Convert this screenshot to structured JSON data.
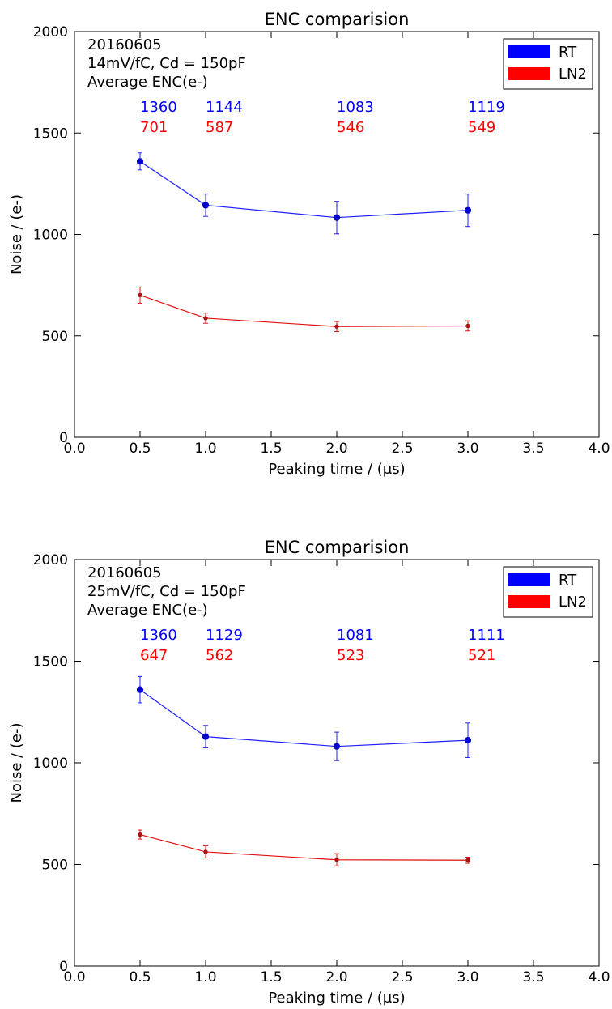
{
  "colors": {
    "rt": "#0000ff",
    "rt_line": "#1f1fff",
    "ln2": "#ff0000",
    "ln2_line": "#e01010",
    "marker_rt": "#0000cc",
    "marker_ln2": "#aa1111"
  },
  "chart_data": [
    {
      "type": "line",
      "title": "ENC comparision",
      "xlabel": "Peaking time / (μs)",
      "ylabel": "Noise /  (e-)",
      "xlim": [
        0.0,
        4.0
      ],
      "ylim": [
        0,
        2000
      ],
      "xticks": [
        "0.0",
        "0.5",
        "1.0",
        "1.5",
        "2.0",
        "2.5",
        "3.0",
        "3.5",
        "4.0"
      ],
      "yticks": [
        "0",
        "500",
        "1000",
        "1500",
        "2000"
      ],
      "xtick_values": [
        0.0,
        0.5,
        1.0,
        1.5,
        2.0,
        2.5,
        3.0,
        3.5,
        4.0
      ],
      "ytick_values": [
        0,
        500,
        1000,
        1500,
        2000
      ],
      "annotation_lines": [
        "20160605",
        "14mV/fC, Cd = 150pF",
        "Average ENC(e-)"
      ],
      "legend_position": "upper right",
      "x": [
        0.5,
        1.0,
        2.0,
        3.0
      ],
      "series": [
        {
          "name": "RT",
          "values": [
            1360,
            1144,
            1083,
            1119
          ],
          "errors": [
            42,
            55,
            80,
            80
          ],
          "labels": [
            "1360",
            "1144",
            "1083",
            "1119"
          ]
        },
        {
          "name": "LN2",
          "values": [
            701,
            587,
            546,
            549
          ],
          "errors": [
            40,
            25,
            25,
            25
          ],
          "labels": [
            "701",
            "587",
            "546",
            "549"
          ]
        }
      ],
      "grid": false
    },
    {
      "type": "line",
      "title": "ENC comparision",
      "xlabel": "Peaking time / (μs)",
      "ylabel": "Noise /  (e-)",
      "xlim": [
        0.0,
        4.0
      ],
      "ylim": [
        0,
        2000
      ],
      "xticks": [
        "0.0",
        "0.5",
        "1.0",
        "1.5",
        "2.0",
        "2.5",
        "3.0",
        "3.5",
        "4.0"
      ],
      "yticks": [
        "0",
        "500",
        "1000",
        "1500",
        "2000"
      ],
      "xtick_values": [
        0.0,
        0.5,
        1.0,
        1.5,
        2.0,
        2.5,
        3.0,
        3.5,
        4.0
      ],
      "ytick_values": [
        0,
        500,
        1000,
        1500,
        2000
      ],
      "annotation_lines": [
        "20160605",
        "25mV/fC, Cd = 150pF",
        "Average ENC(e-)"
      ],
      "legend_position": "upper right",
      "x": [
        0.5,
        1.0,
        2.0,
        3.0
      ],
      "series": [
        {
          "name": "RT",
          "values": [
            1360,
            1129,
            1081,
            1111
          ],
          "errors": [
            65,
            55,
            70,
            85
          ],
          "labels": [
            "1360",
            "1129",
            "1081",
            "1111"
          ]
        },
        {
          "name": "LN2",
          "values": [
            647,
            562,
            523,
            521
          ],
          "errors": [
            22,
            30,
            30,
            15
          ],
          "labels": [
            "647",
            "562",
            "523",
            "521"
          ]
        }
      ],
      "grid": false
    }
  ]
}
